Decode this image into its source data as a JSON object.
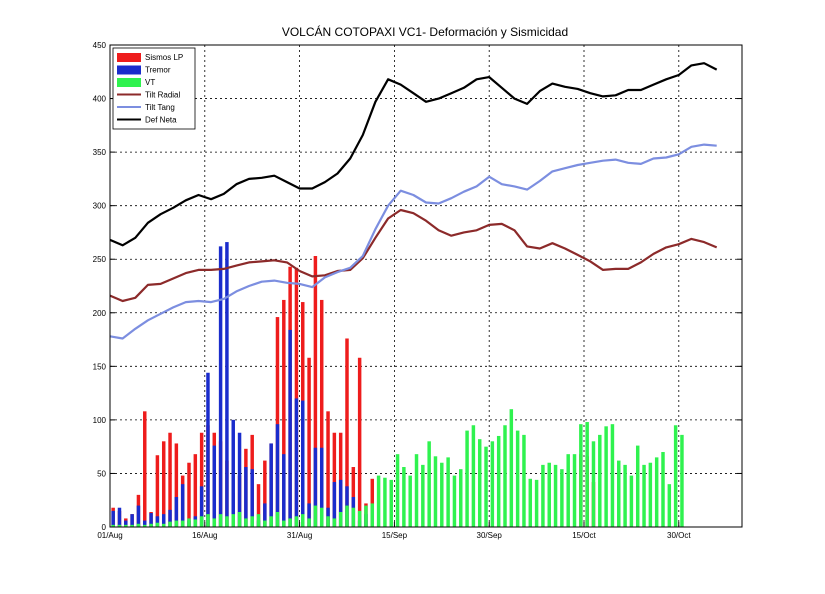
{
  "chart_data": {
    "type": "bar",
    "title": "VOLCÁN COTOPAXI VC1- Deformación y Sismicidad",
    "ylim": [
      0,
      450
    ],
    "yticks": [
      0,
      50,
      100,
      150,
      200,
      250,
      300,
      350,
      400,
      450
    ],
    "xlim": [
      0,
      100
    ],
    "xticks": [
      {
        "x": 0,
        "label": "01/Aug"
      },
      {
        "x": 15,
        "label": "16/Aug"
      },
      {
        "x": 30,
        "label": "31/Aug"
      },
      {
        "x": 45,
        "label": "15/Sep"
      },
      {
        "x": 60,
        "label": "30/Sep"
      },
      {
        "x": 75,
        "label": "15/Oct"
      },
      {
        "x": 90,
        "label": "30/Oct"
      }
    ],
    "grid": true,
    "legend_position": "top-left",
    "colors": {
      "lp": "#ee1c1c",
      "tremor": "#1a2ccc",
      "vt": "#2ff24f",
      "tilt_radial": "#8c2a2a",
      "tilt_tang": "#7c8ee0",
      "def_neta": "#000000"
    },
    "legend": [
      {
        "key": "lp",
        "label": "Sismos LP",
        "kind": "patch"
      },
      {
        "key": "tremor",
        "label": "Tremor",
        "kind": "patch"
      },
      {
        "key": "vt",
        "label": "VT",
        "kind": "patch"
      },
      {
        "key": "tilt_radial",
        "label": "Tilt Radial",
        "kind": "line"
      },
      {
        "key": "tilt_tang",
        "label": "Tilt Tang",
        "kind": "line"
      },
      {
        "key": "def_neta",
        "label": "Def Neta",
        "kind": "line"
      }
    ],
    "bars": {
      "lp": [
        18,
        15,
        8,
        12,
        30,
        108,
        14,
        67,
        80,
        88,
        78,
        48,
        60,
        68,
        88,
        95,
        88,
        80,
        62,
        32,
        48,
        73,
        86,
        40,
        62,
        78,
        196,
        212,
        243,
        242,
        210,
        158,
        253,
        212,
        108,
        88,
        88,
        176,
        56,
        158,
        22,
        45,
        0,
        0,
        0,
        0,
        0,
        0,
        0,
        0,
        0,
        0,
        0,
        0,
        0,
        0,
        0,
        0,
        0,
        0,
        0,
        0,
        0,
        0,
        0,
        0,
        0,
        0,
        0,
        0,
        0,
        0,
        0,
        0,
        68,
        66,
        42,
        0,
        0,
        0,
        0,
        0,
        0,
        0,
        0,
        0,
        0,
        0,
        0,
        0,
        0
      ],
      "tremor": [
        15,
        18,
        6,
        12,
        20,
        6,
        13,
        10,
        12,
        16,
        28,
        40,
        6,
        10,
        38,
        144,
        76,
        262,
        266,
        100,
        88,
        56,
        54,
        6,
        22,
        78,
        96,
        68,
        184,
        120,
        118,
        22,
        74,
        74,
        18,
        42,
        44,
        38,
        28,
        6,
        12,
        0,
        0,
        0,
        0,
        0,
        0,
        0,
        0,
        0,
        0,
        0,
        0,
        0,
        0,
        0,
        0,
        0,
        0,
        0,
        0,
        0,
        0,
        0,
        0,
        0,
        0,
        0,
        0,
        0,
        0,
        0,
        0,
        0,
        0,
        0,
        0,
        0,
        0,
        0,
        0,
        0,
        0,
        0,
        0,
        0,
        0,
        0,
        0,
        0,
        0
      ],
      "vt": [
        2,
        2,
        2,
        2,
        3,
        2,
        3,
        4,
        3,
        5,
        6,
        6,
        8,
        7,
        10,
        12,
        8,
        12,
        10,
        12,
        14,
        8,
        10,
        12,
        6,
        10,
        14,
        6,
        8,
        10,
        12,
        8,
        20,
        18,
        10,
        8,
        14,
        20,
        18,
        15,
        20,
        22,
        48,
        46,
        44,
        68,
        56,
        48,
        68,
        58,
        80,
        66,
        60,
        65,
        48,
        54,
        90,
        95,
        82,
        75,
        80,
        85,
        95,
        110,
        90,
        86,
        45,
        44,
        58,
        60,
        58,
        54,
        68,
        68,
        96,
        98,
        80,
        86,
        94,
        96,
        62,
        58,
        48,
        76,
        58,
        60,
        65,
        70,
        40,
        95,
        86
      ]
    },
    "lines": {
      "tilt_radial": [
        [
          0,
          216
        ],
        [
          2,
          211
        ],
        [
          4,
          214
        ],
        [
          6,
          226
        ],
        [
          8,
          227
        ],
        [
          10,
          232
        ],
        [
          12,
          237
        ],
        [
          14,
          240
        ],
        [
          16,
          240
        ],
        [
          18,
          241
        ],
        [
          20,
          244
        ],
        [
          22,
          247
        ],
        [
          24,
          248
        ],
        [
          26,
          249
        ],
        [
          28,
          247
        ],
        [
          30,
          239
        ],
        [
          32,
          234
        ],
        [
          34,
          235
        ],
        [
          36,
          239
        ],
        [
          38,
          240
        ],
        [
          40,
          251
        ],
        [
          42,
          270
        ],
        [
          44,
          288
        ],
        [
          46,
          296
        ],
        [
          48,
          293
        ],
        [
          50,
          286
        ],
        [
          52,
          277
        ],
        [
          54,
          272
        ],
        [
          56,
          275
        ],
        [
          58,
          277
        ],
        [
          60,
          282
        ],
        [
          62,
          283
        ],
        [
          64,
          277
        ],
        [
          66,
          262
        ],
        [
          68,
          260
        ],
        [
          70,
          265
        ],
        [
          72,
          260
        ],
        [
          74,
          254
        ],
        [
          76,
          248
        ],
        [
          78,
          240
        ],
        [
          80,
          241
        ],
        [
          82,
          241
        ],
        [
          84,
          247
        ],
        [
          86,
          255
        ],
        [
          88,
          261
        ],
        [
          90,
          264
        ],
        [
          92,
          269
        ],
        [
          94,
          266
        ],
        [
          96,
          261
        ]
      ],
      "tilt_tang": [
        [
          0,
          178
        ],
        [
          2,
          176
        ],
        [
          4,
          185
        ],
        [
          6,
          193
        ],
        [
          8,
          199
        ],
        [
          10,
          205
        ],
        [
          12,
          210
        ],
        [
          14,
          211
        ],
        [
          16,
          210
        ],
        [
          18,
          213
        ],
        [
          20,
          220
        ],
        [
          22,
          225
        ],
        [
          24,
          229
        ],
        [
          26,
          230
        ],
        [
          28,
          228
        ],
        [
          30,
          227
        ],
        [
          32,
          224
        ],
        [
          34,
          233
        ],
        [
          36,
          238
        ],
        [
          38,
          242
        ],
        [
          40,
          253
        ],
        [
          42,
          278
        ],
        [
          44,
          300
        ],
        [
          46,
          314
        ],
        [
          48,
          310
        ],
        [
          50,
          303
        ],
        [
          52,
          302
        ],
        [
          54,
          307
        ],
        [
          56,
          313
        ],
        [
          58,
          318
        ],
        [
          60,
          327
        ],
        [
          62,
          320
        ],
        [
          64,
          318
        ],
        [
          66,
          315
        ],
        [
          68,
          323
        ],
        [
          70,
          332
        ],
        [
          72,
          335
        ],
        [
          74,
          338
        ],
        [
          76,
          340
        ],
        [
          78,
          342
        ],
        [
          80,
          343
        ],
        [
          82,
          340
        ],
        [
          84,
          339
        ],
        [
          86,
          344
        ],
        [
          88,
          345
        ],
        [
          90,
          348
        ],
        [
          92,
          355
        ],
        [
          94,
          357
        ],
        [
          96,
          356
        ]
      ],
      "def_neta": [
        [
          0,
          268
        ],
        [
          2,
          263
        ],
        [
          4,
          270
        ],
        [
          6,
          284
        ],
        [
          8,
          292
        ],
        [
          10,
          298
        ],
        [
          12,
          305
        ],
        [
          14,
          310
        ],
        [
          16,
          306
        ],
        [
          18,
          311
        ],
        [
          20,
          320
        ],
        [
          22,
          325
        ],
        [
          24,
          326
        ],
        [
          26,
          328
        ],
        [
          28,
          322
        ],
        [
          30,
          316
        ],
        [
          32,
          316
        ],
        [
          34,
          322
        ],
        [
          36,
          330
        ],
        [
          38,
          344
        ],
        [
          40,
          366
        ],
        [
          42,
          397
        ],
        [
          44,
          418
        ],
        [
          46,
          413
        ],
        [
          48,
          405
        ],
        [
          50,
          397
        ],
        [
          52,
          400
        ],
        [
          54,
          405
        ],
        [
          56,
          410
        ],
        [
          58,
          418
        ],
        [
          60,
          420
        ],
        [
          62,
          410
        ],
        [
          64,
          400
        ],
        [
          66,
          395
        ],
        [
          68,
          407
        ],
        [
          70,
          414
        ],
        [
          72,
          411
        ],
        [
          74,
          409
        ],
        [
          76,
          405
        ],
        [
          78,
          402
        ],
        [
          80,
          403
        ],
        [
          82,
          408
        ],
        [
          84,
          408
        ],
        [
          86,
          413
        ],
        [
          88,
          418
        ],
        [
          90,
          422
        ],
        [
          92,
          431
        ],
        [
          94,
          433
        ],
        [
          96,
          427
        ]
      ]
    }
  }
}
